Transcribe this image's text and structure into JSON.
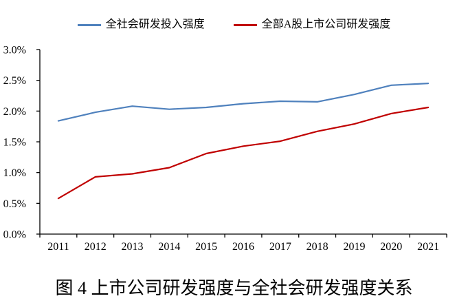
{
  "legend": {
    "items": [
      {
        "label": "全社会研发投入强度",
        "color": "#4F81BD"
      },
      {
        "label": "全部A股上市公司研发强度",
        "color": "#C00000"
      }
    ]
  },
  "caption": "图 4  上市公司研发强度与全社会研发强度关系",
  "chart_data": {
    "type": "line",
    "unit": "%",
    "categories": [
      "2011",
      "2012",
      "2013",
      "2014",
      "2015",
      "2016",
      "2017",
      "2018",
      "2019",
      "2020",
      "2021"
    ],
    "series": [
      {
        "name": "全社会研发投入强度",
        "color": "#4F81BD",
        "values": [
          1.84,
          1.98,
          2.08,
          2.03,
          2.06,
          2.12,
          2.16,
          2.15,
          2.27,
          2.42,
          2.45
        ]
      },
      {
        "name": "全部A股上市公司研发强度",
        "color": "#C00000",
        "values": [
          0.58,
          0.93,
          0.98,
          1.08,
          1.31,
          1.43,
          1.51,
          1.67,
          1.79,
          1.96,
          2.06
        ]
      }
    ],
    "ylim": [
      0,
      3
    ],
    "ytick_step": 0.5,
    "yticklabels": [
      "0.0%",
      "0.5%",
      "1.0%",
      "1.5%",
      "2.0%",
      "2.5%",
      "3.0%"
    ],
    "grid": false,
    "legend_position": "top",
    "axis_color": "#000000"
  }
}
